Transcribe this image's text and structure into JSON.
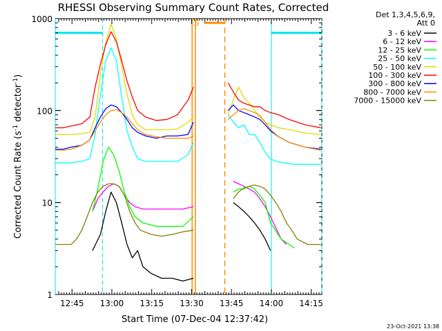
{
  "chart_data": {
    "type": "line",
    "title": "RHESSI Observing Summary Count Rates, Corrected",
    "xlabel": "Start Time (07-Dec-04 12:37:42)",
    "ylabel_main": "Corrected Count Rate (s",
    "ylabel_sup1": "-1",
    "ylabel_mid": " detector",
    "ylabel_sup2": "-1",
    "ylabel_end": ")",
    "y_scale": "log",
    "ylim": [
      1,
      1000
    ],
    "x_unit": "minutes after 12:37:42",
    "xlim": [
      0,
      100.3
    ],
    "x_ticks": [
      {
        "x": 6.3,
        "label": "12:45"
      },
      {
        "x": 21.3,
        "label": "13:00"
      },
      {
        "x": 36.3,
        "label": "13:15"
      },
      {
        "x": 51.3,
        "label": "13:30"
      },
      {
        "x": 66.3,
        "label": "13:45"
      },
      {
        "x": 81.3,
        "label": "14:00"
      },
      {
        "x": 96.3,
        "label": "14:15"
      }
    ],
    "y_ticks": [
      {
        "y": 1,
        "label": "1"
      },
      {
        "y": 10,
        "label": "10"
      },
      {
        "y": 100,
        "label": "100"
      },
      {
        "y": 1000,
        "label": "1000"
      }
    ],
    "legend_header": [
      "Det 1,3,4,5,6,9,",
      "Att 0"
    ],
    "legend_position": "right",
    "footer_date": "23-Oct-2021 13:38",
    "markers": {
      "night_start_x": 52.7,
      "night_end_x": 63.8,
      "saa_label": "S",
      "saa_start_x": 56.0,
      "saa_end_x": 63.8,
      "saa_y": 900,
      "cyan_bar_y": 700,
      "cyan_bars": [
        [
          0,
          17.8
        ],
        [
          81.3,
          100.3
        ]
      ],
      "cyan_solid_x": [
        0,
        81.3
      ],
      "cyan_dashed_x": [
        17.8,
        100.3
      ],
      "orange_solid_x": [
        51.5,
        52.7
      ],
      "orange_dashed_x": 63.8
    },
    "series": [
      {
        "name": "3 - 6 keV",
        "color": "#000000",
        "points": [
          [
            14,
            3
          ],
          [
            17,
            4.5
          ],
          [
            19,
            8
          ],
          [
            21,
            13
          ],
          [
            23,
            10
          ],
          [
            25,
            6
          ],
          [
            27,
            3.5
          ],
          [
            29,
            2.5
          ],
          [
            31,
            3
          ],
          [
            33,
            2
          ],
          [
            36,
            1.7
          ],
          [
            40,
            1.5
          ],
          [
            44,
            1.5
          ],
          [
            48,
            1.4
          ],
          [
            52,
            1.5
          ],
          [
            null,
            null
          ],
          [
            67,
            10
          ],
          [
            69,
            9
          ],
          [
            71,
            8
          ],
          [
            73,
            7
          ],
          [
            75,
            6
          ],
          [
            77,
            5
          ],
          [
            79,
            4
          ],
          [
            81,
            3
          ]
        ]
      },
      {
        "name": "6 - 12 keV",
        "color": "#ff00ff",
        "points": [
          [
            14,
            8
          ],
          [
            16,
            11
          ],
          [
            18,
            13
          ],
          [
            20,
            15
          ],
          [
            22,
            16
          ],
          [
            24,
            15
          ],
          [
            26,
            12
          ],
          [
            28,
            10
          ],
          [
            30,
            9
          ],
          [
            33,
            8.5
          ],
          [
            38,
            8.5
          ],
          [
            44,
            8.5
          ],
          [
            48,
            8.5
          ],
          [
            52,
            9
          ],
          [
            null,
            null
          ],
          [
            67,
            17
          ],
          [
            69,
            16
          ],
          [
            71,
            15
          ],
          [
            73,
            14
          ],
          [
            75,
            13
          ],
          [
            77,
            11
          ],
          [
            79,
            9
          ],
          [
            81,
            7
          ],
          [
            85,
            4
          ],
          [
            87,
            3.5
          ]
        ]
      },
      {
        "name": "12 - 25 keV",
        "color": "#00ff00",
        "points": [
          [
            14,
            8
          ],
          [
            16,
            14
          ],
          [
            18,
            28
          ],
          [
            20,
            40
          ],
          [
            22,
            33
          ],
          [
            24,
            22
          ],
          [
            26,
            13
          ],
          [
            28,
            9
          ],
          [
            30,
            7
          ],
          [
            33,
            6
          ],
          [
            38,
            5.5
          ],
          [
            44,
            5.5
          ],
          [
            48,
            5.5
          ],
          [
            52,
            7
          ],
          [
            null,
            null
          ],
          [
            67,
            13
          ],
          [
            69,
            14
          ],
          [
            71,
            14
          ],
          [
            73,
            15
          ],
          [
            75,
            14
          ],
          [
            77,
            12
          ],
          [
            79,
            10
          ],
          [
            81,
            6
          ],
          [
            85,
            4
          ],
          [
            88,
            3.5
          ],
          [
            90,
            3.2
          ]
        ]
      },
      {
        "name": "25 - 50 keV",
        "color": "#00ffff",
        "points": [
          [
            0,
            27
          ],
          [
            3,
            27
          ],
          [
            6,
            27
          ],
          [
            10,
            28
          ],
          [
            13,
            30
          ],
          [
            15,
            55
          ],
          [
            17,
            150
          ],
          [
            19,
            350
          ],
          [
            21,
            480
          ],
          [
            23,
            350
          ],
          [
            25,
            140
          ],
          [
            27,
            60
          ],
          [
            29,
            40
          ],
          [
            31,
            30
          ],
          [
            34,
            28
          ],
          [
            38,
            28
          ],
          [
            42,
            28
          ],
          [
            46,
            28
          ],
          [
            50,
            33
          ],
          [
            52,
            45
          ],
          [
            null,
            null
          ],
          [
            65,
            90
          ],
          [
            67,
            75
          ],
          [
            69,
            65
          ],
          [
            71,
            70
          ],
          [
            73,
            55
          ],
          [
            75,
            55
          ],
          [
            77,
            45
          ],
          [
            79,
            35
          ],
          [
            81,
            30
          ],
          [
            83,
            28
          ],
          [
            86,
            27
          ],
          [
            90,
            26
          ],
          [
            95,
            26
          ],
          [
            100,
            26
          ]
        ]
      },
      {
        "name": "50 - 100 keV",
        "color": "#dddd00",
        "points": [
          [
            0,
            55
          ],
          [
            3,
            55
          ],
          [
            6,
            55
          ],
          [
            10,
            56
          ],
          [
            13,
            58
          ],
          [
            15,
            85
          ],
          [
            17,
            250
          ],
          [
            19,
            550
          ],
          [
            21,
            870
          ],
          [
            23,
            600
          ],
          [
            25,
            300
          ],
          [
            27,
            150
          ],
          [
            29,
            90
          ],
          [
            31,
            70
          ],
          [
            34,
            62
          ],
          [
            38,
            62
          ],
          [
            42,
            62
          ],
          [
            46,
            63
          ],
          [
            50,
            75
          ],
          [
            52,
            85
          ],
          [
            null,
            null
          ],
          [
            65,
            90
          ],
          [
            67,
            130
          ],
          [
            69,
            180
          ],
          [
            71,
            140
          ],
          [
            73,
            120
          ],
          [
            75,
            100
          ],
          [
            77,
            85
          ],
          [
            79,
            75
          ],
          [
            81,
            70
          ],
          [
            84,
            65
          ],
          [
            88,
            62
          ],
          [
            94,
            57
          ],
          [
            100,
            55
          ]
        ]
      },
      {
        "name": "100 - 300 keV",
        "color": "#ff0000",
        "points": [
          [
            0,
            65
          ],
          [
            3,
            65
          ],
          [
            6,
            68
          ],
          [
            10,
            72
          ],
          [
            13,
            85
          ],
          [
            15,
            180
          ],
          [
            17,
            320
          ],
          [
            19,
            520
          ],
          [
            21,
            720
          ],
          [
            23,
            560
          ],
          [
            25,
            350
          ],
          [
            27,
            210
          ],
          [
            29,
            140
          ],
          [
            31,
            100
          ],
          [
            34,
            85
          ],
          [
            38,
            78
          ],
          [
            42,
            80
          ],
          [
            46,
            90
          ],
          [
            50,
            130
          ],
          [
            52,
            180
          ],
          [
            null,
            null
          ],
          [
            65,
            200
          ],
          [
            67,
            160
          ],
          [
            69,
            130
          ],
          [
            71,
            120
          ],
          [
            73,
            115
          ],
          [
            75,
            110
          ],
          [
            77,
            110
          ],
          [
            79,
            100
          ],
          [
            81,
            95
          ],
          [
            84,
            90
          ],
          [
            88,
            80
          ],
          [
            94,
            70
          ],
          [
            100,
            65
          ]
        ]
      },
      {
        "name": "300 - 800 keV",
        "color": "#0000ff",
        "points": [
          [
            0,
            38
          ],
          [
            3,
            38
          ],
          [
            6,
            40
          ],
          [
            10,
            42
          ],
          [
            13,
            48
          ],
          [
            15,
            65
          ],
          [
            17,
            85
          ],
          [
            19,
            105
          ],
          [
            21,
            115
          ],
          [
            23,
            110
          ],
          [
            25,
            95
          ],
          [
            27,
            80
          ],
          [
            29,
            65
          ],
          [
            31,
            58
          ],
          [
            34,
            53
          ],
          [
            38,
            50
          ],
          [
            42,
            53
          ],
          [
            46,
            53
          ],
          [
            50,
            55
          ],
          [
            52,
            75
          ],
          [
            null,
            null
          ],
          [
            65,
            100
          ],
          [
            67,
            115
          ],
          [
            69,
            100
          ],
          [
            71,
            95
          ],
          [
            73,
            90
          ],
          [
            75,
            85
          ],
          [
            77,
            80
          ],
          [
            79,
            70
          ],
          [
            81,
            60
          ],
          [
            84,
            52
          ],
          [
            88,
            45
          ],
          [
            94,
            40
          ],
          [
            100,
            38
          ]
        ]
      },
      {
        "name": "800 - 7000 keV",
        "color": "#ff8c00",
        "points": [
          [
            0,
            37
          ],
          [
            3,
            37
          ],
          [
            6,
            38
          ],
          [
            10,
            42
          ],
          [
            13,
            48
          ],
          [
            15,
            60
          ],
          [
            17,
            75
          ],
          [
            19,
            90
          ],
          [
            21,
            100
          ],
          [
            23,
            102
          ],
          [
            25,
            95
          ],
          [
            27,
            85
          ],
          [
            29,
            72
          ],
          [
            31,
            62
          ],
          [
            34,
            55
          ],
          [
            38,
            52
          ],
          [
            42,
            50
          ],
          [
            46,
            50
          ],
          [
            50,
            50
          ],
          [
            52,
            53
          ],
          [
            null,
            null
          ],
          [
            65,
            80
          ],
          [
            67,
            90
          ],
          [
            69,
            100
          ],
          [
            71,
            105
          ],
          [
            73,
            100
          ],
          [
            75,
            95
          ],
          [
            77,
            88
          ],
          [
            79,
            75
          ],
          [
            81,
            62
          ],
          [
            84,
            52
          ],
          [
            88,
            45
          ],
          [
            94,
            40
          ],
          [
            100,
            37
          ]
        ]
      },
      {
        "name": "7000 - 15000 keV",
        "color": "#808000",
        "points": [
          [
            0,
            3.5
          ],
          [
            3,
            3.5
          ],
          [
            6,
            3.5
          ],
          [
            8,
            4
          ],
          [
            10,
            5
          ],
          [
            12,
            7
          ],
          [
            14,
            10
          ],
          [
            16,
            13
          ],
          [
            18,
            15
          ],
          [
            20,
            16
          ],
          [
            22,
            16
          ],
          [
            24,
            15
          ],
          [
            26,
            12
          ],
          [
            28,
            8
          ],
          [
            30,
            6
          ],
          [
            32,
            5
          ],
          [
            36,
            4.5
          ],
          [
            40,
            4.3
          ],
          [
            44,
            4.5
          ],
          [
            48,
            4.8
          ],
          [
            52,
            5
          ],
          [
            null,
            null
          ],
          [
            67,
            11
          ],
          [
            69,
            13
          ],
          [
            71,
            14.5
          ],
          [
            73,
            15
          ],
          [
            75,
            15.5
          ],
          [
            77,
            15
          ],
          [
            79,
            14
          ],
          [
            81,
            12
          ],
          [
            83,
            10
          ],
          [
            85,
            8
          ],
          [
            87,
            6
          ],
          [
            89,
            5
          ],
          [
            91,
            4
          ],
          [
            95,
            3.5
          ],
          [
            100,
            3.5
          ]
        ]
      }
    ]
  }
}
